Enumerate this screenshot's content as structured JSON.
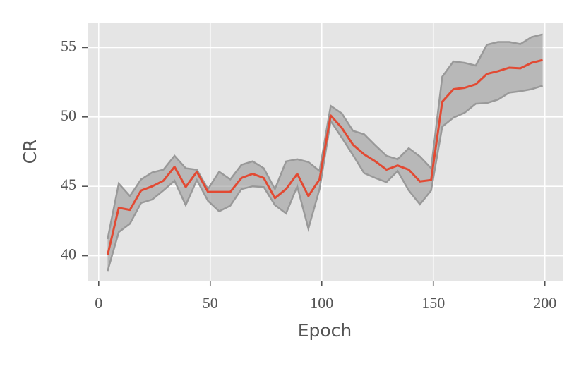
{
  "chart_data": {
    "type": "line",
    "xlabel": "Epoch",
    "ylabel": "CR",
    "x": [
      4,
      9,
      14,
      19,
      24,
      29,
      34,
      39,
      44,
      49,
      54,
      59,
      64,
      69,
      74,
      79,
      84,
      89,
      94,
      99,
      104,
      109,
      114,
      119,
      124,
      129,
      134,
      139,
      144,
      149,
      154,
      159,
      164,
      169,
      174,
      179,
      184,
      189,
      194,
      199
    ],
    "series": [
      {
        "color": "#e24a33",
        "values": [
          40.05,
          43.45,
          43.3,
          44.7,
          45.0,
          45.4,
          46.4,
          44.95,
          46.05,
          44.6,
          44.6,
          44.6,
          45.6,
          45.9,
          45.6,
          44.15,
          44.8,
          45.9,
          44.3,
          45.5,
          50.1,
          49.2,
          48.0,
          47.3,
          46.8,
          46.2,
          46.5,
          46.2,
          45.35,
          45.45,
          51.1,
          52.0,
          52.1,
          52.35,
          53.1,
          53.3,
          53.55,
          53.5,
          53.9,
          54.1
        ]
      }
    ],
    "band": {
      "color": "#999999",
      "upper": [
        41.2,
        45.2,
        44.3,
        45.5,
        46.0,
        46.2,
        47.2,
        46.3,
        46.2,
        44.8,
        46.05,
        45.5,
        46.55,
        46.8,
        46.3,
        44.8,
        46.8,
        46.95,
        46.75,
        46.1,
        50.8,
        50.25,
        49.0,
        48.75,
        47.95,
        47.2,
        46.95,
        47.75,
        47.15,
        46.3,
        52.9,
        54.0,
        53.9,
        53.7,
        55.2,
        55.4,
        55.4,
        55.25,
        55.75,
        55.95
      ],
      "lower": [
        38.9,
        41.7,
        42.3,
        43.8,
        44.05,
        44.7,
        45.4,
        43.65,
        45.45,
        43.95,
        43.2,
        43.6,
        44.8,
        45.0,
        44.95,
        43.65,
        43.05,
        45.0,
        41.95,
        44.8,
        49.7,
        48.5,
        47.25,
        45.95,
        45.6,
        45.3,
        46.1,
        44.7,
        43.7,
        44.7,
        49.3,
        49.95,
        50.3,
        50.95,
        51.0,
        51.25,
        51.75,
        51.85,
        52.0,
        52.25
      ]
    },
    "xlim": [
      -5,
      208
    ],
    "ylim": [
      38.2,
      56.8
    ],
    "xticks": [
      0,
      50,
      100,
      150,
      200
    ],
    "yticks": [
      40,
      45,
      50,
      55
    ],
    "grid": true
  }
}
